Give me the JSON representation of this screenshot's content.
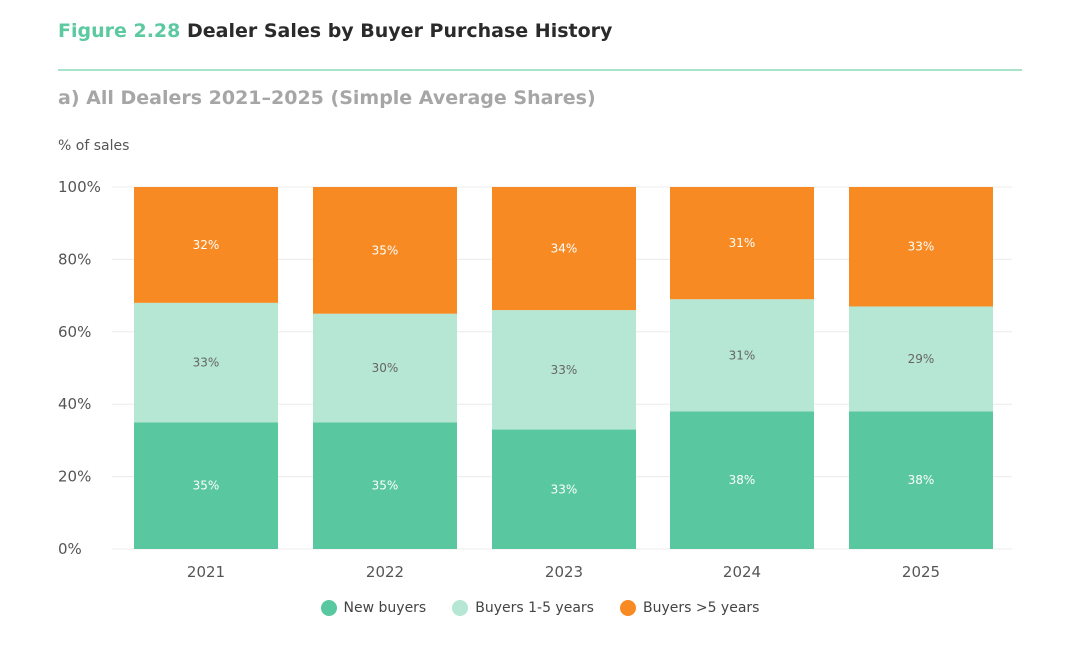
{
  "figure": {
    "number": "Figure 2.28",
    "title": "Dealer Sales by Buyer Purchase History"
  },
  "subtitle": "a) All Dealers 2021–2025 (Simple Average Shares)",
  "colors": {
    "accent": "#5cc9a0",
    "rule": "#a8e2c8",
    "subtitle": "#a6a6a6"
  },
  "chart_data": {
    "type": "bar",
    "stacked": true,
    "title": "Dealer Sales by Buyer Purchase History",
    "ylabel": "% of sales",
    "xlabel": "",
    "ylim": [
      0,
      100
    ],
    "yticks": [
      "0%",
      "20%",
      "40%",
      "60%",
      "80%",
      "100%"
    ],
    "categories": [
      "2021",
      "2022",
      "2023",
      "2024",
      "2025"
    ],
    "series": [
      {
        "name": "New buyers",
        "color": "#59c7a0",
        "values": [
          35,
          35,
          33,
          38,
          38
        ]
      },
      {
        "name": "Buyers 1-5 years",
        "color": "#b6e6d4",
        "values": [
          33,
          30,
          33,
          31,
          29
        ]
      },
      {
        "name": "Buyers >5 years",
        "color": "#f78a23",
        "values": [
          32,
          35,
          34,
          31,
          33
        ]
      }
    ],
    "legend_position": "bottom-center"
  }
}
